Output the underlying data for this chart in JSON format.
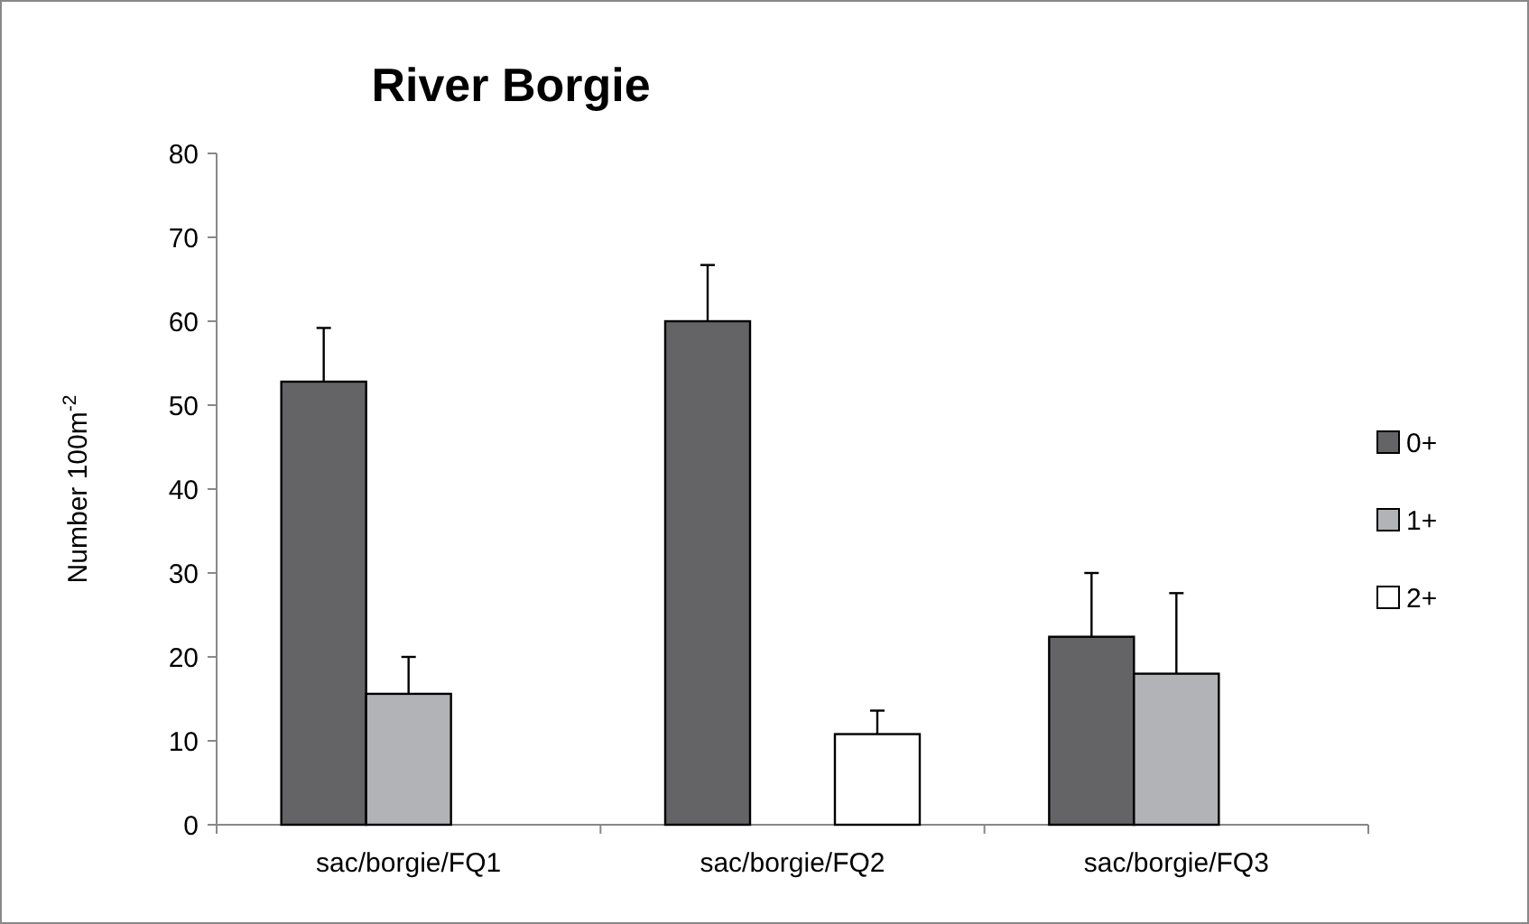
{
  "chart_data": {
    "type": "bar",
    "title": "River Borgie",
    "ylabel": "Number 100m$^{-2}$",
    "categories": [
      "sac/borgie/FQ1",
      "sac/borgie/FQ2",
      "sac/borgie/FQ3"
    ],
    "series": [
      {
        "name": "0+",
        "color": "#646466",
        "values": [
          52.8,
          60,
          22.4
        ],
        "errors": [
          [
            52.8,
            59.2
          ],
          [
            60,
            66.7
          ],
          [
            22.4,
            30
          ]
        ]
      },
      {
        "name": "1+",
        "color": "#b2b3b6",
        "values": [
          15.6,
          null,
          18
        ],
        "errors": [
          [
            15.6,
            20
          ],
          null,
          [
            18,
            27.6
          ]
        ]
      },
      {
        "name": "2+",
        "color": "#ffffff",
        "values": [
          null,
          10.8,
          null
        ],
        "errors": [
          null,
          [
            10.8,
            13.6
          ],
          null
        ]
      }
    ],
    "ylim": [
      0,
      80
    ],
    "yticks": [
      0,
      10,
      20,
      30,
      40,
      50,
      60,
      70,
      80
    ],
    "grid": false,
    "legend": "right"
  }
}
